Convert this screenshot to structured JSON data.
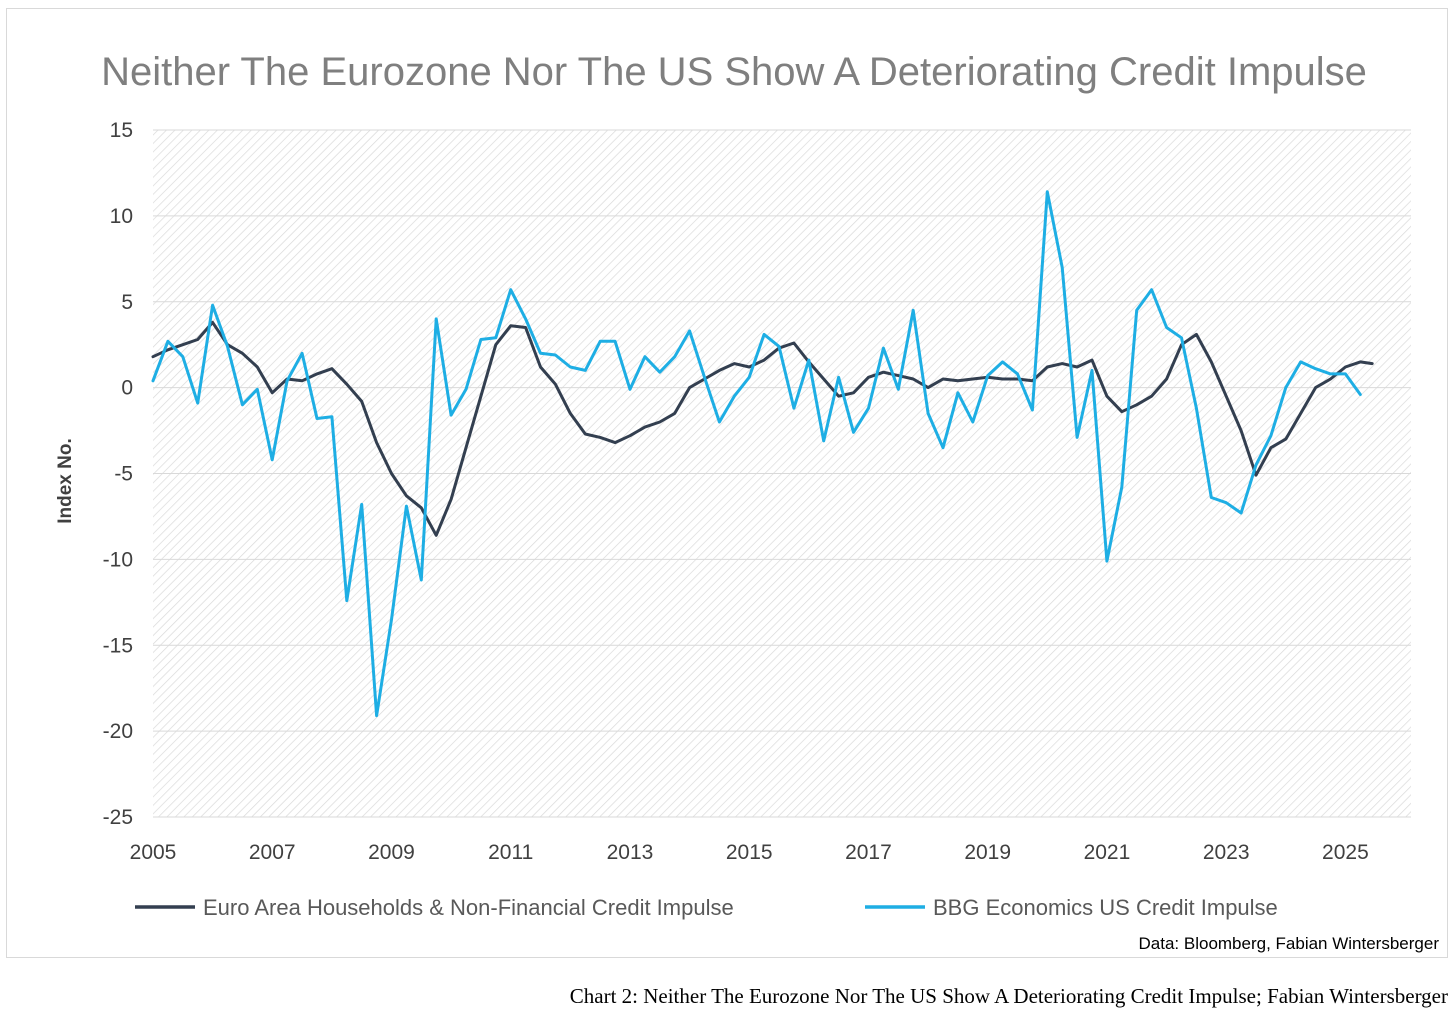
{
  "caption": "Chart 2: Neither The Eurozone Nor The US Show A Deteriorating Credit Impulse; Fabian Wintersberger",
  "chart_data": {
    "type": "line",
    "title": "Neither The Eurozone Nor The US Show A Deteriorating Credit Impulse",
    "ylabel": "Index No.",
    "xlabel": "",
    "source": "Data: Bloomberg, Fabian Wintersberger",
    "xlim": [
      2005,
      2026.1
    ],
    "ylim": [
      -25,
      15
    ],
    "x_ticks": [
      "2005",
      "2007",
      "2009",
      "2011",
      "2013",
      "2015",
      "2017",
      "2019",
      "2021",
      "2023",
      "2025"
    ],
    "y_ticks": [
      "15",
      "10",
      "5",
      "0",
      "-5",
      "-10",
      "-15",
      "-20",
      "-25"
    ],
    "grid": true,
    "legend_position": "bottom",
    "series": [
      {
        "name": "Euro Area Households & Non-Financial Credit Impulse",
        "color": "#333f50",
        "x": [
          2005.0,
          2005.25,
          2005.5,
          2005.75,
          2006.0,
          2006.25,
          2006.5,
          2006.75,
          2007.0,
          2007.25,
          2007.5,
          2007.75,
          2008.0,
          2008.25,
          2008.5,
          2008.75,
          2009.0,
          2009.25,
          2009.5,
          2009.75,
          2010.0,
          2010.25,
          2010.5,
          2010.75,
          2011.0,
          2011.25,
          2011.5,
          2011.75,
          2012.0,
          2012.25,
          2012.5,
          2012.75,
          2013.0,
          2013.25,
          2013.5,
          2013.75,
          2014.0,
          2014.25,
          2014.5,
          2014.75,
          2015.0,
          2015.25,
          2015.5,
          2015.75,
          2016.0,
          2016.25,
          2016.5,
          2016.75,
          2017.0,
          2017.25,
          2017.5,
          2017.75,
          2018.0,
          2018.25,
          2018.5,
          2018.75,
          2019.0,
          2019.25,
          2019.5,
          2019.75,
          2020.0,
          2020.25,
          2020.5,
          2020.75,
          2021.0,
          2021.25,
          2021.5,
          2021.75,
          2022.0,
          2022.25,
          2022.5,
          2022.75,
          2023.0,
          2023.25,
          2023.5,
          2023.75,
          2024.0,
          2024.25,
          2024.5,
          2024.75,
          2025.0,
          2025.25,
          2025.45
        ],
        "y": [
          1.8,
          2.2,
          2.5,
          2.8,
          3.8,
          2.5,
          2.0,
          1.2,
          -0.3,
          0.5,
          0.4,
          0.8,
          1.1,
          0.2,
          -0.8,
          -3.2,
          -5.0,
          -6.3,
          -7.0,
          -8.6,
          -6.5,
          -3.5,
          -0.5,
          2.5,
          3.6,
          3.5,
          1.2,
          0.2,
          -1.5,
          -2.7,
          -2.9,
          -3.2,
          -2.8,
          -2.3,
          -2.0,
          -1.5,
          0.0,
          0.5,
          1.0,
          1.4,
          1.2,
          1.6,
          2.3,
          2.6,
          1.5,
          0.5,
          -0.5,
          -0.3,
          0.6,
          0.9,
          0.7,
          0.5,
          0.0,
          0.5,
          0.4,
          0.5,
          0.6,
          0.5,
          0.5,
          0.4,
          1.2,
          1.4,
          1.2,
          1.6,
          -0.5,
          -1.4,
          -1.0,
          -0.5,
          0.5,
          2.5,
          3.1,
          1.5,
          -0.5,
          -2.5,
          -5.1,
          -3.5,
          -3.0,
          -1.5,
          0.0,
          0.5,
          1.2,
          1.5,
          1.4
        ]
      },
      {
        "name": "BBG Economics US Credit Impulse",
        "color": "#1eaee4",
        "x": [
          2005.0,
          2005.25,
          2005.5,
          2005.75,
          2006.0,
          2006.25,
          2006.5,
          2006.75,
          2007.0,
          2007.25,
          2007.5,
          2007.75,
          2008.0,
          2008.25,
          2008.5,
          2008.75,
          2009.0,
          2009.25,
          2009.5,
          2009.75,
          2010.0,
          2010.25,
          2010.5,
          2010.75,
          2011.0,
          2011.25,
          2011.5,
          2011.75,
          2012.0,
          2012.25,
          2012.5,
          2012.75,
          2013.0,
          2013.25,
          2013.5,
          2013.75,
          2014.0,
          2014.25,
          2014.5,
          2014.75,
          2015.0,
          2015.25,
          2015.5,
          2015.75,
          2016.0,
          2016.25,
          2016.5,
          2016.75,
          2017.0,
          2017.25,
          2017.5,
          2017.75,
          2018.0,
          2018.25,
          2018.5,
          2018.75,
          2019.0,
          2019.25,
          2019.5,
          2019.75,
          2020.0,
          2020.25,
          2020.5,
          2020.75,
          2021.0,
          2021.25,
          2021.5,
          2021.75,
          2022.0,
          2022.25,
          2022.5,
          2022.75,
          2023.0,
          2023.25,
          2023.5,
          2023.75,
          2024.0,
          2024.25,
          2024.5,
          2024.75,
          2025.0,
          2025.25
        ],
        "y": [
          0.4,
          2.7,
          1.8,
          -0.9,
          4.8,
          2.4,
          -1.0,
          -0.1,
          -4.2,
          0.4,
          2.0,
          -1.8,
          -1.7,
          -12.4,
          -6.8,
          -19.1,
          -13.5,
          -6.9,
          -11.2,
          4.0,
          -1.6,
          -0.1,
          2.8,
          2.9,
          5.7,
          4.0,
          2.0,
          1.9,
          1.2,
          1.0,
          2.7,
          2.7,
          -0.1,
          1.8,
          0.9,
          1.8,
          3.3,
          0.6,
          -2.0,
          -0.5,
          0.6,
          3.1,
          2.4,
          -1.2,
          1.6,
          -3.1,
          0.6,
          -2.6,
          -1.2,
          2.3,
          -0.1,
          4.5,
          -1.5,
          -3.5,
          -0.3,
          -2.0,
          0.7,
          1.5,
          0.8,
          -1.3,
          11.4,
          7.0,
          -2.9,
          1.0,
          -10.1,
          -5.8,
          4.5,
          5.7,
          3.5,
          2.9,
          -1.2,
          -6.4,
          -6.7,
          -7.3,
          -4.5,
          -2.8,
          0.0,
          1.5,
          1.1,
          0.8,
          0.8,
          -0.4
        ]
      }
    ]
  }
}
